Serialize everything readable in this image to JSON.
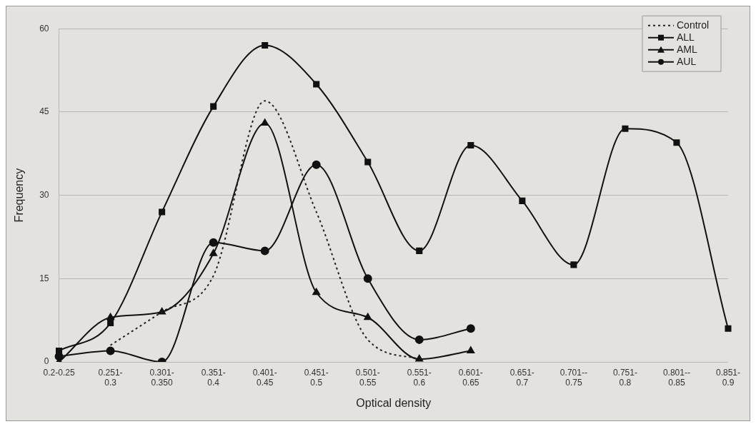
{
  "chart_data": {
    "type": "line",
    "xlabel": "Optical density",
    "ylabel": "Frequency",
    "categories": [
      "0.2-0.25",
      "0.251-\n0.3",
      "0.301-\n0.350",
      "0.351-\n0.4",
      "0.401-\n0.45",
      "0.451-\n0.5",
      "0.501-\n0.55",
      "0.551-\n0.6",
      "0.601-\n0.65",
      "0.651-\n0.7",
      "0.701--\n0.75",
      "0.751-\n0.8",
      "0.801--\n0.85",
      "0.851-\n0.9"
    ],
    "series": [
      {
        "name": "Control",
        "color": "#222222",
        "marker": "none",
        "line_style": "dotted",
        "values": [
          null,
          3,
          9,
          15.5,
          47,
          27,
          4,
          0.5,
          null,
          null,
          null,
          null,
          null,
          null
        ]
      },
      {
        "name": "ALL",
        "color": "#111111",
        "marker": "square",
        "line_style": "solid",
        "values": [
          2,
          7,
          27,
          46,
          57,
          50,
          36,
          20,
          39,
          29,
          17.5,
          42,
          39.5,
          6
        ]
      },
      {
        "name": "AML",
        "color": "#111111",
        "marker": "triangle",
        "line_style": "solid",
        "values": [
          0,
          8,
          9,
          19.5,
          43,
          12.5,
          8,
          0.5,
          2,
          null,
          null,
          null,
          null,
          null
        ]
      },
      {
        "name": "AUL",
        "color": "#111111",
        "marker": "circle",
        "line_style": "solid",
        "values": [
          1,
          2,
          0,
          21.5,
          20,
          35.5,
          15,
          4,
          6,
          null,
          null,
          null,
          null,
          null
        ]
      }
    ],
    "ylim": [
      0,
      60
    ],
    "yticks": [
      0,
      15,
      30,
      45,
      60
    ],
    "grid": "y",
    "legend": "top right"
  }
}
